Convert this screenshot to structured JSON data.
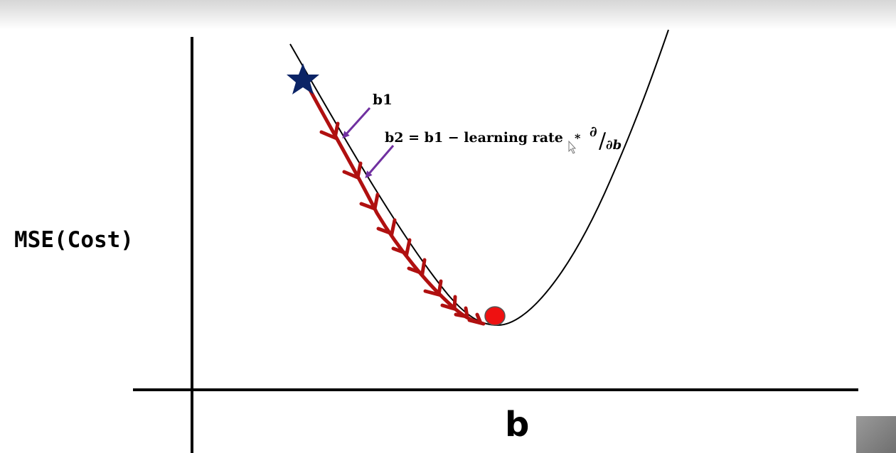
{
  "labels": {
    "y_axis": "MSE(Cost)",
    "x_axis": "b",
    "first_step": "b1",
    "update_rule": "b2 = b1  − learning rate",
    "multiply": "*",
    "partial_numerator": "∂",
    "partial_slash": "/",
    "partial_denominator": "∂b"
  },
  "colors": {
    "axis": "#000000",
    "curve": "#000000",
    "descent_path": "#b01010",
    "start_star": "#0b2466",
    "minimum_point": "#ee1111",
    "pointer_arrows": "#7030a0"
  },
  "icons": {
    "start_marker": "star-icon",
    "minimum_marker": "circle-icon",
    "cursor": "pointer-cursor-icon"
  },
  "descent_step_count": 10
}
